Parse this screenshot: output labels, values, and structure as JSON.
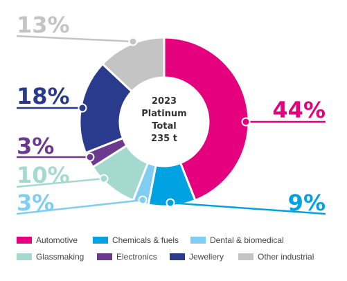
{
  "chart_data": {
    "type": "pie",
    "style": "donut",
    "center_label": [
      "2023",
      "Platinum",
      "Total",
      "235 t"
    ],
    "slices": [
      {
        "name": "Automotive",
        "value": 44,
        "label": "44%",
        "color": "#e5007e"
      },
      {
        "name": "Chemicals & fuels",
        "value": 9,
        "label": "9%",
        "color": "#00a2e2"
      },
      {
        "name": "Dental & biomedical",
        "value": 3,
        "label": "3%",
        "color": "#7fcdf2"
      },
      {
        "name": "Glassmaking",
        "value": 10,
        "label": "10%",
        "color": "#a3d9cf"
      },
      {
        "name": "Electronics",
        "value": 3,
        "label": "3%",
        "color": "#6b3a8f"
      },
      {
        "name": "Jewellery",
        "value": 18,
        "label": "18%",
        "color": "#2a3a8c"
      },
      {
        "name": "Other industrial",
        "value": 13,
        "label": "13%",
        "color": "#c4c4c4"
      }
    ],
    "legend_position": "bottom"
  },
  "legend": {
    "items": [
      {
        "label": "Automotive",
        "color": "#e5007e"
      },
      {
        "label": "Chemicals & fuels",
        "color": "#00a2e2"
      },
      {
        "label": "Dental & biomedical",
        "color": "#7fcdf2"
      },
      {
        "label": "Glassmaking",
        "color": "#a3d9cf"
      },
      {
        "label": "Electronics",
        "color": "#6b3a8f"
      },
      {
        "label": "Jewellery",
        "color": "#2a3a8c"
      },
      {
        "label": "Other industrial",
        "color": "#c4c4c4"
      }
    ]
  }
}
